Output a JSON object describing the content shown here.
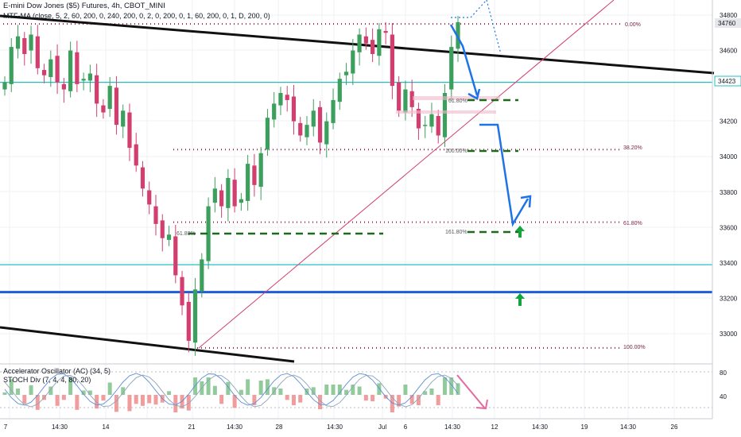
{
  "header": {
    "title": "E-mini Dow Jones ($5) Futures, 4h, CBOT_MINI",
    "indicator": "MTF-MA (close, 5, 2, 60, 200, 0, 240, 200, 0, 2, 0, 200, 0, 1, 60, 200, 0, 1, D, 200, 0)"
  },
  "subpane": {
    "line1": "Accelerator Oscillator (AC) (34, 5)",
    "line2": "STOCH Div (7, 4, 4, 80, 20)",
    "y_ticks": [
      "80",
      "40"
    ]
  },
  "price_axis": {
    "ticks": [
      "34800",
      "34600",
      "34200",
      "34000",
      "33800",
      "33600",
      "33400",
      "33200",
      "33000"
    ],
    "price_tags": [
      {
        "label": "34760",
        "bg": "#e5e7eb",
        "color": "#131722"
      },
      {
        "label": "34423",
        "bg": "#ffffff",
        "color": "#131722"
      }
    ]
  },
  "time_axis": {
    "ticks": [
      "7",
      "14:30",
      "14",
      "21",
      "14:30",
      "28",
      "14:30",
      "Jul",
      "6",
      "14:30",
      "12",
      "14:30",
      "19",
      "14:30",
      "26",
      "14:30"
    ]
  },
  "fib_labels": {
    "upper": [
      "0.00%",
      "38.20%",
      "61.80%",
      "100.00%"
    ],
    "inner": [
      "61.80%",
      "100.00%",
      "161.80%",
      "61.80%"
    ]
  },
  "colors": {
    "up": "#3d9f5d",
    "down": "#d23f6e",
    "fib": "#9e1f4c",
    "cyan": "#22c0c6",
    "blue": "#1f5bd8",
    "projection": "#1e73e8",
    "trend": "#111111",
    "pink": "#e46aa0",
    "target": "#11a53b"
  },
  "chart_data": {
    "type": "candlestick",
    "title": "E-mini Dow Jones ($5) Futures, 4h, CBOT_MINI",
    "ylim": [
      32880,
      34900
    ],
    "price_lines": {
      "fib_0": 34750,
      "fib_38_2": 34040,
      "fib_61_8": 33630,
      "fib_100": 32920,
      "cyan_upper": 34420,
      "cyan_lower": 33390,
      "blue_support": 33235,
      "green_dash_left": 33560,
      "green_dash_upper": 34320,
      "green_dash_mid": 34040,
      "green_dash_right": 33575,
      "last_price": 34760,
      "cyan_tag": 34423
    },
    "close_path": [
      34420,
      34620,
      34680,
      34580,
      34690,
      34500,
      34460,
      34550,
      34420,
      34380,
      34600,
      34410,
      34440,
      34470,
      34300,
      34250,
      34400,
      34180,
      34260,
      34050,
      33950,
      33820,
      33730,
      33620,
      33540,
      33560,
      33330,
      33160,
      32960,
      33250,
      33420,
      33720,
      33820,
      33720,
      33880,
      33720,
      33760,
      33960,
      33840,
      34020,
      34220,
      34300,
      34360,
      34320,
      34200,
      34120,
      34180,
      34260,
      34080,
      34200,
      34320,
      34440,
      34480,
      34600,
      34690,
      34640,
      34580,
      34720,
      34700,
      34400,
      34260,
      34380,
      34280,
      34160,
      34180,
      34240,
      34120,
      34360,
      34620,
      34760
    ],
    "annotations": [
      "descending trendline",
      "rising trendline",
      "projected path down to 161.8% extension then up",
      "green up-arrows at 33575 and 33235"
    ]
  }
}
